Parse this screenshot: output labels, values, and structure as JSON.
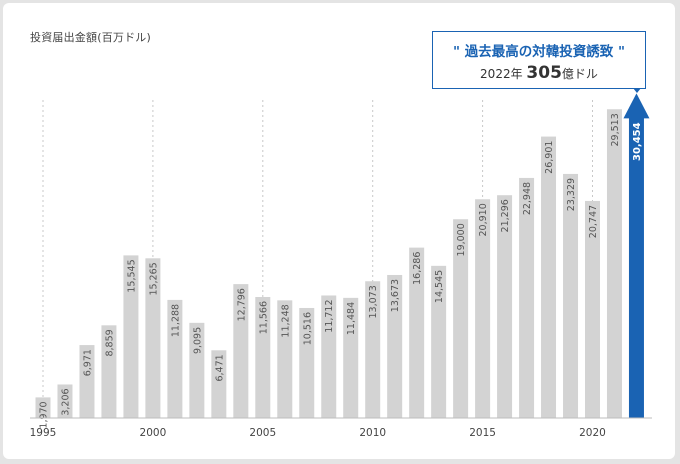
{
  "header": {
    "unit_label": "投資届出金額(百万ドル)"
  },
  "callout": {
    "title": "\" 過去最高の対韓投資誘致 \"",
    "sub_prefix": "2022年",
    "sub_value": "305",
    "sub_suffix": "億ドル"
  },
  "colors": {
    "bar": "#d3d3d3",
    "highlight": "#1a63b3",
    "label": "#555555",
    "highlight_label": "#ffffff"
  },
  "chart_data": {
    "type": "bar",
    "title": "",
    "xlabel": "",
    "ylabel": "投資届出金額(百万ドル)",
    "ylim": [
      0,
      32500
    ],
    "grid": "vertical dashed lines at 1995, 2000, 2005, 2010, 2015, 2020",
    "x_tick_labels": [
      "1995",
      "2000",
      "2005",
      "2010",
      "2015",
      "2020"
    ],
    "categories": [
      1995,
      1996,
      1997,
      1998,
      1999,
      2000,
      2001,
      2002,
      2003,
      2004,
      2005,
      2006,
      2007,
      2008,
      2009,
      2010,
      2011,
      2012,
      2013,
      2014,
      2015,
      2016,
      2017,
      2018,
      2019,
      2020,
      2021,
      2022
    ],
    "values": [
      1970,
      3206,
      6971,
      8859,
      15545,
      15265,
      11288,
      9095,
      6471,
      12796,
      11566,
      11248,
      10516,
      11712,
      11484,
      13073,
      13673,
      16286,
      14545,
      19000,
      20910,
      21296,
      22948,
      26901,
      23329,
      20747,
      29513,
      30454
    ],
    "value_labels": [
      "1,970",
      "3,206",
      "6,971",
      "8,859",
      "15,545",
      "15,265",
      "11,288",
      "9,095",
      "6,471",
      "12,796",
      "11,566",
      "11,248",
      "10,516",
      "11,712",
      "11,484",
      "13,073",
      "13,673",
      "16,286",
      "14,545",
      "19,000",
      "20,910",
      "21,296",
      "22,948",
      "26,901",
      "23,329",
      "20,747",
      "29,513",
      "30,454"
    ],
    "highlight_category": 2022
  }
}
